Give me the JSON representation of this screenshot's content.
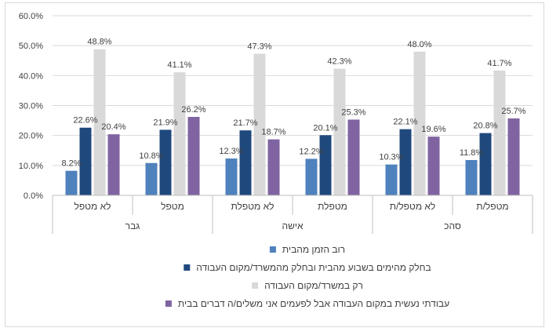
{
  "chart_data": {
    "type": "bar",
    "y_ticks": [
      "0.0%",
      "10.0%",
      "20.0%",
      "30.0%",
      "40.0%",
      "50.0%",
      "60.0%"
    ],
    "ylim": [
      0,
      60
    ],
    "grid": true,
    "legend_position": "bottom",
    "groups": [
      {
        "label": "גבר",
        "categories": [
          "לא מטפל",
          "מטפל"
        ]
      },
      {
        "label": "אישה",
        "categories": [
          "לא מטפלת",
          "מטפלת"
        ]
      },
      {
        "label": "סהכ",
        "categories": [
          "לא מטפל/ת",
          "מטפל/ת"
        ]
      }
    ],
    "series": [
      {
        "name": "רוב הזמן מהבית",
        "color": "#4f81bd",
        "values": [
          8.2,
          10.8,
          12.3,
          12.2,
          10.3,
          11.8
        ],
        "labels": [
          "8.2%",
          "10.8%",
          "12.3%",
          "12.2%",
          "10.3%",
          "11.8%"
        ]
      },
      {
        "name": "בחלק מהימים בשבוע מהבית ובחלק מהמשרד/מקום העבודה",
        "color": "#1f497d",
        "values": [
          22.6,
          21.9,
          21.7,
          20.1,
          22.1,
          20.8
        ],
        "labels": [
          "22.6%",
          "21.9%",
          "21.7%",
          "20.1%",
          "22.1%",
          "20.8%"
        ]
      },
      {
        "name": "רק במשרד/מקום העבודה",
        "color": "#d9d9d9",
        "values": [
          48.8,
          41.1,
          47.3,
          42.3,
          48.0,
          41.7
        ],
        "labels": [
          "48.8%",
          "41.1%",
          "47.3%",
          "42.3%",
          "48.0%",
          "41.7%"
        ]
      },
      {
        "name": "עבודתי נעשית במקום העבודה אבל לפעמים אני משלים/ה דברים בבית",
        "color": "#8064a2",
        "values": [
          20.4,
          26.2,
          18.7,
          25.3,
          19.6,
          25.7
        ],
        "labels": [
          "20.4%",
          "26.2%",
          "18.7%",
          "25.3%",
          "19.6%",
          "25.7%"
        ]
      }
    ]
  }
}
